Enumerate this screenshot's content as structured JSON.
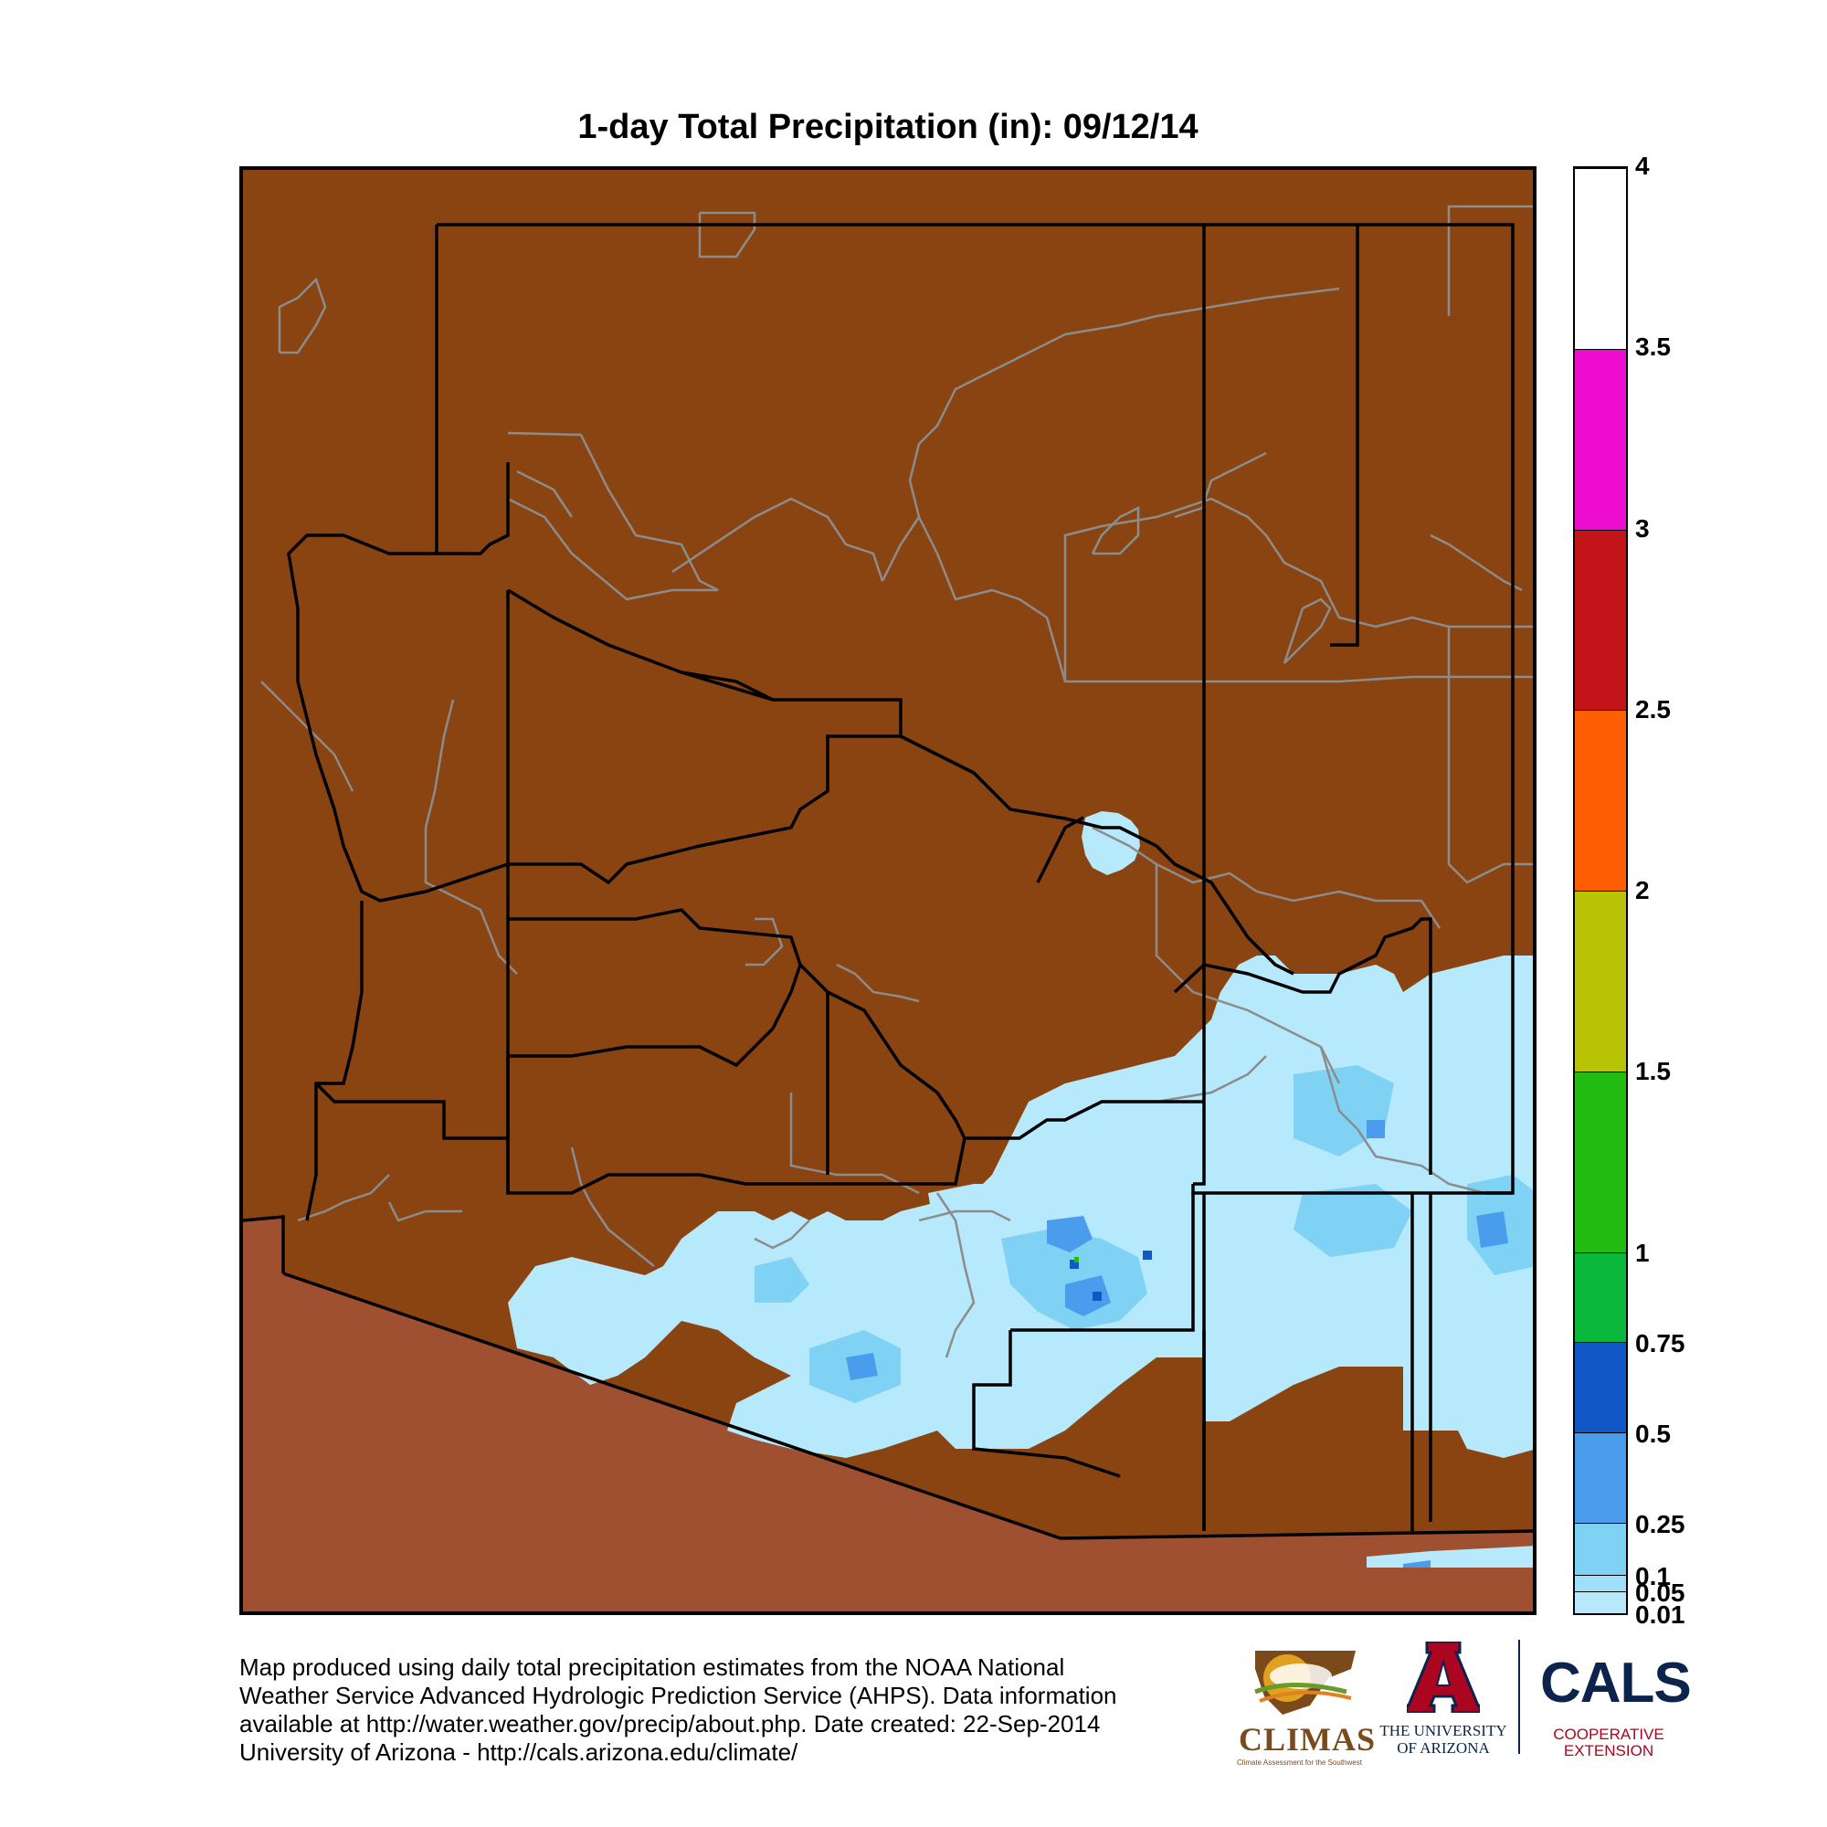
{
  "title": "1-day Total Precipitation (in): 09/12/14",
  "colors": {
    "no_precip_in_state": "#8a4412",
    "outside_region": "#9e5030",
    "boundary": "#000000",
    "reservation": "#8c8c8c"
  },
  "colorbar": {
    "ticks": [
      "4",
      "3.5",
      "3",
      "2.5",
      "2",
      "1.5",
      "1",
      "0.75",
      "0.5",
      "0.25",
      "0.1",
      "0.05",
      "0.01"
    ],
    "segments": [
      {
        "from": 3.5,
        "to": 4,
        "color": "#ffffff"
      },
      {
        "from": 3,
        "to": 3.5,
        "color": "#ee0ccf"
      },
      {
        "from": 2.5,
        "to": 3,
        "color": "#c3141a"
      },
      {
        "from": 2,
        "to": 2.5,
        "color": "#ff5e05"
      },
      {
        "from": 1.5,
        "to": 2,
        "color": "#b8c305"
      },
      {
        "from": 1,
        "to": 1.5,
        "color": "#21bb12"
      },
      {
        "from": 0.75,
        "to": 1,
        "color": "#0ab83b"
      },
      {
        "from": 0.5,
        "to": 0.75,
        "color": "#1257c6"
      },
      {
        "from": 0.25,
        "to": 0.5,
        "color": "#4a9ded"
      },
      {
        "from": 0.1,
        "to": 0.25,
        "color": "#80d2f5"
      },
      {
        "from": 0.05,
        "to": 0.1,
        "color": "#9fdff7"
      },
      {
        "from": 0.01,
        "to": 0.05,
        "color": "#b6e9fb"
      }
    ]
  },
  "footer": {
    "line1": "Map produced using daily total precipitation estimates from the NOAA National",
    "line2": "Weather Service Advanced Hydrologic Prediction Service (AHPS). Data information",
    "line3": "available at http://water.weather.gov/precip/about.php. Date created: 22-Sep-2014",
    "line4": "University of Arizona - http://cals.arizona.edu/climate/"
  },
  "logos": {
    "climas": "CLIMAS",
    "climas_sub": "Climate Assessment for the Southwest",
    "ua_line1": "THE UNIVERSITY",
    "ua_line2": "OF ARIZONA",
    "cals": "CALS",
    "cals_sub1": "COOPERATIVE",
    "cals_sub2": "EXTENSION"
  }
}
